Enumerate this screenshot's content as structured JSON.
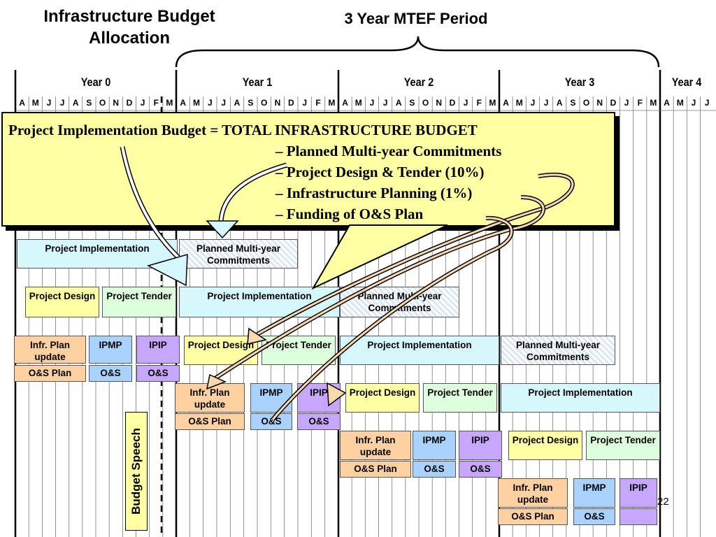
{
  "title_line1": "Infrastructure Budget",
  "title_line2": "Allocation",
  "mtef": "3 Year MTEF Period",
  "years": [
    "Year 0",
    "Year 1",
    "Year 2",
    "Year 3",
    "Year 4"
  ],
  "months": [
    "A",
    "M",
    "J",
    "J",
    "A",
    "S",
    "O",
    "N",
    "D",
    "J",
    "F",
    "M"
  ],
  "year4_months": [
    "A",
    "M",
    "J",
    "J"
  ],
  "callout": {
    "line1": "Project Implementation Budget  =  TOTAL INFRASTRUCTURE BUDGET",
    "items": [
      "–  Planned Multi-year Commitments",
      "–  Project Design & Tender (10%)",
      "–  Infrastructure Planning (1%)",
      "–  Funding of O&S Plan"
    ]
  },
  "labels": {
    "project_implementation": "Project Implementation",
    "planned_multiyear": "Planned Multi-year Commitments",
    "project_design": "Project Design",
    "project_tender": "Project Tender",
    "infr_plan_update": "Infr. Plan update",
    "ipmp": "IPMP",
    "ipip": "IPIP",
    "os_plan": "O&S Plan",
    "os": "O&S"
  },
  "budget_speech": "Budget Speech",
  "page_number": "22",
  "colors": {
    "cyan": "#d6f7fb",
    "yellow": "#ffffa3",
    "green": "#ddffdd",
    "orange": "#ffd1a0",
    "blue": "#a9d2ff",
    "purple": "#c7a6ff"
  }
}
